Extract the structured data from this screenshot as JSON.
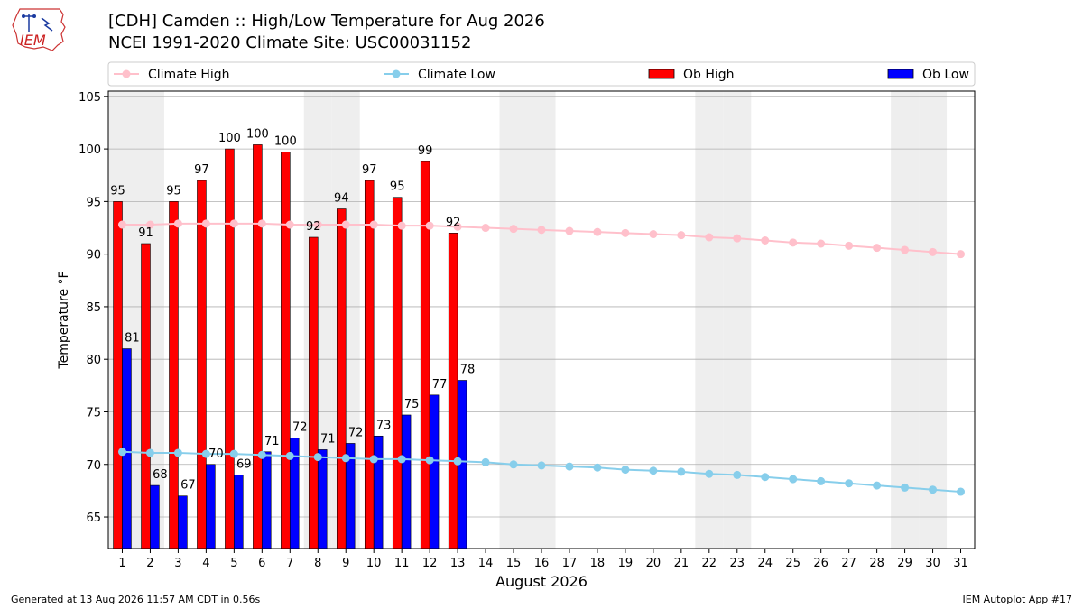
{
  "header": {
    "title_line1": "[CDH] Camden :: High/Low Temperature for Aug 2026",
    "title_line2": "NCEI 1991-2020 Climate Site: USC00031152"
  },
  "logo": {
    "text": "IEM"
  },
  "footer": {
    "left": "Generated at 13 Aug 2026 11:57 AM CDT in 0.56s",
    "right": "IEM Autoplot App #17"
  },
  "colors": {
    "ob_high": "#ff0000",
    "ob_low": "#0000ff",
    "climate_high": "#ffc0cb",
    "climate_low": "#87ceeb",
    "weekend_shade": "#eeeeee"
  },
  "chart_data": {
    "type": "bar",
    "xlabel": "August 2026",
    "ylabel": "Temperature °F",
    "xlim": [
      0.5,
      31.5
    ],
    "ylim": [
      62,
      105.5
    ],
    "yticks": [
      65,
      70,
      75,
      80,
      85,
      90,
      95,
      100,
      105
    ],
    "x": [
      1,
      2,
      3,
      4,
      5,
      6,
      7,
      8,
      9,
      10,
      11,
      12,
      13,
      14,
      15,
      16,
      17,
      18,
      19,
      20,
      21,
      22,
      23,
      24,
      25,
      26,
      27,
      28,
      29,
      30,
      31
    ],
    "grid": "horizontal",
    "shaded_weekend_days": [
      1,
      2,
      8,
      9,
      15,
      16,
      22,
      23,
      29,
      30
    ],
    "legend": [
      "Climate High",
      "Climate Low",
      "Ob High",
      "Ob Low"
    ],
    "legend_placement": "top",
    "series": [
      {
        "name": "Ob High",
        "type": "bar",
        "x": [
          1,
          2,
          3,
          4,
          5,
          6,
          7,
          8,
          9,
          10,
          11,
          12,
          13
        ],
        "values": [
          95,
          91,
          95,
          97,
          100,
          100.4,
          99.7,
          91.6,
          94.3,
          97,
          95.4,
          98.8,
          92
        ],
        "labels": [
          "95",
          "91",
          "95",
          "97",
          "100",
          "100",
          "100",
          "92",
          "94",
          "97",
          "95",
          "99",
          "92"
        ]
      },
      {
        "name": "Ob Low",
        "type": "bar",
        "x": [
          1,
          2,
          3,
          4,
          5,
          6,
          7,
          8,
          9,
          10,
          11,
          12,
          13
        ],
        "values": [
          81,
          68,
          67,
          70,
          69,
          71.2,
          72.5,
          71.4,
          72,
          72.7,
          74.7,
          76.6,
          78
        ],
        "labels": [
          "81",
          "68",
          "67",
          "70",
          "69",
          "71",
          "72",
          "71",
          "72",
          "73",
          "75",
          "77",
          "78"
        ]
      },
      {
        "name": "Climate High",
        "type": "line",
        "values": [
          92.8,
          92.8,
          92.9,
          92.9,
          92.9,
          92.9,
          92.8,
          92.8,
          92.8,
          92.8,
          92.7,
          92.7,
          92.6,
          92.5,
          92.4,
          92.3,
          92.2,
          92.1,
          92.0,
          91.9,
          91.8,
          91.6,
          91.5,
          91.3,
          91.1,
          91.0,
          90.8,
          90.6,
          90.4,
          90.2,
          90.0
        ]
      },
      {
        "name": "Climate Low",
        "type": "line",
        "values": [
          71.2,
          71.1,
          71.1,
          71.0,
          71.0,
          70.9,
          70.8,
          70.7,
          70.6,
          70.5,
          70.5,
          70.4,
          70.3,
          70.2,
          70.0,
          69.9,
          69.8,
          69.7,
          69.5,
          69.4,
          69.3,
          69.1,
          69.0,
          68.8,
          68.6,
          68.4,
          68.2,
          68.0,
          67.8,
          67.6,
          67.4
        ]
      }
    ]
  }
}
